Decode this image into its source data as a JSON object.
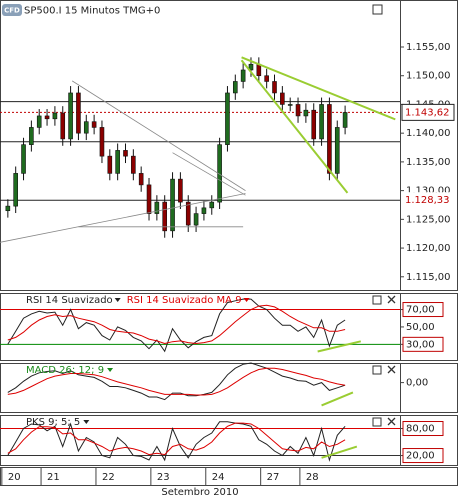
{
  "header": {
    "logo": "CFD"
  },
  "chart_data": [
    {
      "type": "candlestick",
      "title": "SP500.I 15 Minutos TMG+0",
      "open": [
        1.1265,
        1.1273,
        1.133,
        1.138,
        1.141,
        1.143,
        1.1425,
        1.1435,
        1.139,
        1.147,
        1.14,
        1.142,
        1.141,
        1.136,
        1.133,
        1.137,
        1.136,
        1.133,
        1.131,
        1.126,
        1.128,
        1.123,
        1.132,
        1.128,
        1.124,
        1.126,
        1.127,
        1.128,
        1.138,
        1.147,
        1.149,
        1.151,
        1.152,
        1.15,
        1.149,
        1.147,
        1.145,
        1.145,
        1.143,
        1.144,
        1.139,
        1.145,
        1.133,
        1.141
      ],
      "high": [
        1.1285,
        1.1342,
        1.1392,
        1.1422,
        1.1442,
        1.1442,
        1.1447,
        1.1447,
        1.1482,
        1.1482,
        1.1432,
        1.1432,
        1.1422,
        1.1372,
        1.1382,
        1.1382,
        1.1372,
        1.1342,
        1.1322,
        1.1292,
        1.1292,
        1.1332,
        1.1332,
        1.1292,
        1.1272,
        1.1282,
        1.1292,
        1.1392,
        1.1482,
        1.1502,
        1.1522,
        1.1532,
        1.1532,
        1.1512,
        1.1502,
        1.1482,
        1.1462,
        1.1462,
        1.1452,
        1.1452,
        1.1462,
        1.1462,
        1.1422,
        1.1448
      ],
      "low": [
        1.1253,
        1.1261,
        1.1318,
        1.1368,
        1.1398,
        1.1413,
        1.1413,
        1.1378,
        1.1378,
        1.1388,
        1.1388,
        1.1398,
        1.1348,
        1.1318,
        1.1318,
        1.1348,
        1.1318,
        1.1298,
        1.1248,
        1.1248,
        1.1218,
        1.1218,
        1.1268,
        1.1228,
        1.1228,
        1.1248,
        1.1258,
        1.1268,
        1.1368,
        1.1458,
        1.1478,
        1.1498,
        1.1488,
        1.1478,
        1.1458,
        1.1438,
        1.1438,
        1.1418,
        1.1418,
        1.1378,
        1.1378,
        1.1318,
        1.1318,
        1.1398
      ],
      "close": [
        1.1273,
        1.133,
        1.138,
        1.141,
        1.143,
        1.1425,
        1.1435,
        1.139,
        1.147,
        1.14,
        1.142,
        1.141,
        1.136,
        1.133,
        1.137,
        1.136,
        1.133,
        1.131,
        1.126,
        1.128,
        1.123,
        1.132,
        1.128,
        1.124,
        1.126,
        1.127,
        1.128,
        1.138,
        1.147,
        1.149,
        1.151,
        1.152,
        1.15,
        1.149,
        1.147,
        1.145,
        1.145,
        1.143,
        1.144,
        1.139,
        1.145,
        1.133,
        1.141,
        1.1436
      ],
      "up_color": "#1f6b1f",
      "down_color": "#8b0000",
      "xlim": [
        -1,
        50
      ],
      "xticks": [
        {
          "value": 0,
          "label": "20"
        },
        {
          "value": 5,
          "label": "21"
        },
        {
          "value": 12,
          "label": "22"
        },
        {
          "value": 19,
          "label": "23"
        },
        {
          "value": 26,
          "label": "24"
        },
        {
          "value": 33,
          "label": "27"
        },
        {
          "value": 38,
          "label": "28"
        }
      ],
      "xlabel": "Setembro 2010",
      "ylim": [
        1.1127,
        1.1597
      ],
      "yticks": [
        {
          "value": 1.115,
          "label": "1.115,00"
        },
        {
          "value": 1.12,
          "label": "1.120,00"
        },
        {
          "value": 1.125,
          "label": "1.125,00"
        },
        {
          "value": 1.13,
          "label": "1.130,00"
        },
        {
          "value": 1.135,
          "label": "1.135,00"
        },
        {
          "value": 1.14,
          "label": "1.140,00"
        },
        {
          "value": 1.145,
          "label": "1.145,00"
        },
        {
          "value": 1.15,
          "label": "1.150,00"
        },
        {
          "value": 1.155,
          "label": "1.155,00"
        }
      ],
      "levels": [
        1.1455,
        1.1385
      ],
      "price_labels": [
        {
          "value": 1.14362,
          "label": "1.143,62",
          "color": "#c00000",
          "dotted": true
        },
        {
          "value": 1.12833,
          "label": "1.128,33",
          "color": "#c00000",
          "dotted": false
        }
      ],
      "trendlines": [
        {
          "color": "#9acd32",
          "points": [
            [
              29.8,
              1.1532
            ],
            [
              49.4,
              1.1424
            ]
          ]
        },
        {
          "color": "#9acd32",
          "points": [
            [
              29.8,
              1.1527
            ],
            [
              43.3,
              1.1296
            ]
          ]
        },
        {
          "color": "#888888",
          "points": [
            [
              -1,
              1.121
            ],
            [
              30.3,
              1.1295
            ]
          ]
        },
        {
          "color": "#888888",
          "points": [
            [
              8.2,
              1.1491
            ],
            [
              30.3,
              1.13
            ]
          ]
        },
        {
          "color": "#888888",
          "points": [
            [
              9,
              1.1237
            ],
            [
              30,
              1.1237
            ]
          ]
        },
        {
          "color": "#888888",
          "points": [
            [
              21,
              1.1366
            ],
            [
              30.3,
              1.1292
            ]
          ]
        }
      ]
    },
    {
      "type": "line",
      "series": [
        {
          "name": "RSI 14 Suavizado",
          "color": "#222222",
          "values": [
            30,
            45,
            60,
            65,
            68,
            66,
            67,
            52,
            70,
            48,
            55,
            52,
            40,
            35,
            50,
            46,
            38,
            34,
            25,
            35,
            22,
            48,
            35,
            26,
            33,
            38,
            40,
            65,
            78,
            80,
            82,
            82,
            74,
            70,
            60,
            52,
            52,
            45,
            50,
            38,
            58,
            28,
            52,
            58
          ]
        },
        {
          "name": "RSI 14 Suavizado MA 9",
          "color": "#dd0000",
          "values": [
            35,
            38,
            44,
            52,
            58,
            62,
            64,
            62,
            63,
            60,
            58,
            56,
            52,
            47,
            45,
            44,
            43,
            40,
            36,
            34,
            31,
            33,
            34,
            32,
            31,
            32,
            34,
            40,
            48,
            56,
            63,
            70,
            74,
            75,
            73,
            68,
            62,
            57,
            53,
            49,
            49,
            45,
            45,
            47
          ]
        }
      ],
      "ylim": [
        12,
        89
      ],
      "yticks": [
        {
          "value": 70,
          "label": "70,00"
        },
        {
          "value": 50,
          "label": "50,00"
        },
        {
          "value": 30,
          "label": "30,00"
        }
      ],
      "levels": [
        {
          "value": 70,
          "color": "#dd0000"
        },
        {
          "value": 30,
          "color": "#008800"
        }
      ],
      "trendlines": [
        {
          "color": "#9acd32",
          "points": [
            [
              39.5,
              21.8
            ],
            [
              45,
              33.5
            ]
          ]
        }
      ]
    },
    {
      "type": "line",
      "title": "MACD 26; 12; 9",
      "title_color": "#1a8a1a",
      "series": [
        {
          "color": "#222222",
          "values": [
            -0.0015,
            -0.0008,
            0.0002,
            0.001,
            0.0015,
            0.0017,
            0.0018,
            0.0014,
            0.0018,
            0.0012,
            0.001,
            0.0008,
            0.0002,
            -0.0006,
            -0.0006,
            -0.0008,
            -0.0012,
            -0.0016,
            -0.0022,
            -0.0022,
            -0.0026,
            -0.0016,
            -0.0016,
            -0.002,
            -0.002,
            -0.0018,
            -0.0015,
            -0.0003,
            0.0012,
            0.0022,
            0.0028,
            0.003,
            0.0026,
            0.0022,
            0.0016,
            0.001,
            0.0007,
            0.0003,
            0.0002,
            -0.0004,
            0,
            -0.0012,
            -0.0008,
            -0.0004
          ]
        },
        {
          "color": "#dd0000",
          "values": [
            -0.0018,
            -0.0016,
            -0.0012,
            -0.0006,
            0,
            0.0006,
            0.001,
            0.0012,
            0.0014,
            0.0014,
            0.0013,
            0.0012,
            0.0009,
            0.0005,
            0.0001,
            -0.0002,
            -0.0005,
            -0.0008,
            -0.0012,
            -0.0015,
            -0.0018,
            -0.0018,
            -0.0018,
            -0.0018,
            -0.0019,
            -0.0019,
            -0.0018,
            -0.0014,
            -0.0008,
            0,
            0.0008,
            0.0015,
            0.002,
            0.0022,
            0.0022,
            0.002,
            0.0017,
            0.0014,
            0.0011,
            0.0007,
            0.0005,
            0.0001,
            -0.0002,
            -0.0004
          ]
        }
      ],
      "ylim": [
        -0.0045,
        0.003
      ],
      "yticks": [
        {
          "value": 0,
          "label": "0,00"
        }
      ],
      "levels": [],
      "trendlines": [
        {
          "color": "#9acd32",
          "points": [
            [
              40,
              -0.0035
            ],
            [
              44,
              -0.0015
            ]
          ]
        }
      ]
    },
    {
      "type": "line",
      "title": "PKS 9; 5; 5",
      "title_color": "#222222",
      "series": [
        {
          "color": "#222222",
          "values": [
            20,
            50,
            80,
            90,
            88,
            75,
            85,
            40,
            90,
            30,
            60,
            50,
            20,
            15,
            60,
            45,
            20,
            18,
            10,
            40,
            10,
            80,
            40,
            15,
            45,
            60,
            70,
            95,
            95,
            92,
            90,
            85,
            55,
            45,
            30,
            20,
            40,
            25,
            60,
            20,
            80,
            10,
            65,
            85
          ]
        },
        {
          "color": "#dd0000",
          "values": [
            25,
            35,
            55,
            72,
            84,
            84,
            82,
            68,
            70,
            55,
            55,
            48,
            40,
            30,
            35,
            38,
            35,
            30,
            22,
            25,
            22,
            40,
            45,
            35,
            32,
            38,
            50,
            70,
            85,
            92,
            92,
            90,
            80,
            65,
            50,
            35,
            32,
            30,
            38,
            35,
            50,
            40,
            45,
            55
          ]
        }
      ],
      "ylim": [
        -1,
        110
      ],
      "yticks": [
        {
          "value": 80,
          "label": "80,00"
        },
        {
          "value": 20,
          "label": "20,00"
        }
      ],
      "levels": [
        {
          "value": 80,
          "color": "#dd0000"
        },
        {
          "value": 20,
          "color": "#333333"
        }
      ],
      "trendlines": [
        {
          "color": "#9acd32",
          "points": [
            [
              40,
              15
            ],
            [
              44.5,
              40
            ]
          ]
        }
      ]
    }
  ]
}
